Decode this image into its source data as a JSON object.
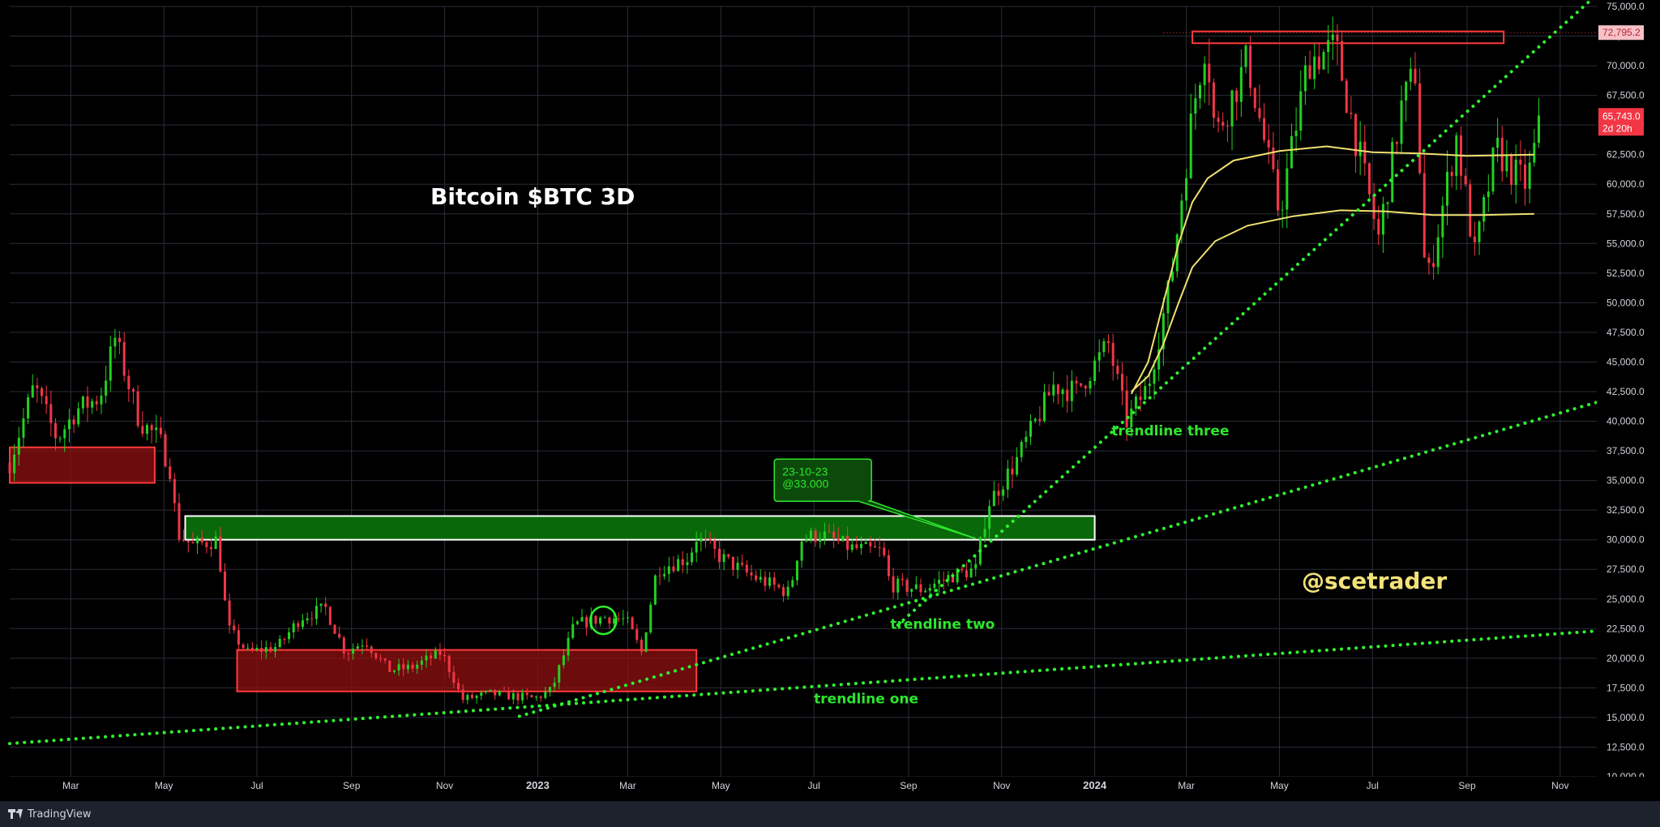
{
  "chart_data": {
    "type": "candlestick",
    "title": "Bitcoin $BTC 3D",
    "watermark": "@scetrader",
    "x_ticks": [
      "Mar",
      "May",
      "Jul",
      "Sep",
      "Nov",
      "2023",
      "Mar",
      "May",
      "Jul",
      "Sep",
      "Nov",
      "2024",
      "Mar",
      "May",
      "Jul",
      "Sep",
      "Nov"
    ],
    "y_ticks": [
      "75,000.0",
      "72,500.0",
      "70,000.0",
      "67,500.0",
      "65,000.0",
      "62,500.0",
      "60,000.0",
      "57,500.0",
      "55,000.0",
      "52,500.0",
      "50,000.0",
      "47,500.0",
      "45,000.0",
      "42,500.0",
      "40,000.0",
      "37,500.0",
      "35,000.0",
      "32,500.0",
      "30,000.0",
      "27,500.0",
      "25,000.0",
      "22,500.0",
      "20,000.0",
      "17,500.0",
      "15,000.0",
      "12,500.0",
      "10,000.0"
    ],
    "ylim": [
      10000,
      75000
    ],
    "xlim": [
      "2022-01-20",
      "2024-11-25"
    ],
    "grid": true,
    "price_labels": {
      "resistance_value": "72,795.2",
      "last_value": "65,743.0",
      "countdown": "2d 20h"
    },
    "colors": {
      "up": "#22d122",
      "down": "#f23645",
      "trendline": "#2ff02f",
      "zone_green": "#0a6e0a",
      "zone_red": "#8b1010",
      "ma": "#f0e070",
      "annotation": "#2ee52e",
      "watermark": "#f3e27a",
      "title": "#ffffff",
      "resistance": "#f23645",
      "last_price": "#f23645"
    },
    "annotations": [
      {
        "text": "trendline one",
        "x": "2023-07-01",
        "y": 16200
      },
      {
        "text": "trendline two",
        "x": "2023-08-20",
        "y": 22500
      },
      {
        "text": "trendline three",
        "x": "2024-01-12",
        "y": 38800
      }
    ],
    "callout": {
      "lines": [
        "23-10-23",
        "@33.000"
      ],
      "target": {
        "x": "2023-10-15",
        "y": 30100
      }
    },
    "zones": [
      {
        "kind": "green",
        "x0": "2022-05-15",
        "x1": "2024-01-01",
        "y0": 30000,
        "y1": 32000,
        "outline": "#ffffff"
      },
      {
        "kind": "red",
        "x0": "2022-06-18",
        "x1": "2023-04-15",
        "y0": 17200,
        "y1": 20700,
        "outline": "#ff3b3b"
      },
      {
        "kind": "red",
        "x0": "2022-01-20",
        "x1": "2022-04-25",
        "y0": 34800,
        "y1": 37800,
        "outline": "#ff3b3b"
      },
      {
        "kind": "red-outline",
        "x0": "2024-03-05",
        "x1": "2024-09-25",
        "y0": 71900,
        "y1": 72900,
        "outline": "#ff3b3b"
      }
    ],
    "circle_marker": {
      "x": "2023-02-13",
      "y": 23200
    },
    "trendlines": [
      {
        "name": "trendline one",
        "p1": {
          "x": "2022-01-20",
          "y": 12800
        },
        "p2": {
          "x": "2024-11-25",
          "y": 22300
        }
      },
      {
        "name": "trendline two",
        "p1": {
          "x": "2022-12-20",
          "y": 15100
        },
        "p2": {
          "x": "2024-11-25",
          "y": 41600
        }
      },
      {
        "name": "trendline three",
        "p1": {
          "x": "2023-08-25",
          "y": 22800
        },
        "p2": {
          "x": "2024-11-25",
          "y": 76000
        }
      }
    ],
    "moving_averages": [
      {
        "points": [
          [
            "2024-01-25",
            42300
          ],
          [
            "2024-02-05",
            45000
          ],
          [
            "2024-02-15",
            50000
          ],
          [
            "2024-02-25",
            55000
          ],
          [
            "2024-03-05",
            58500
          ],
          [
            "2024-03-15",
            60500
          ],
          [
            "2024-04-01",
            62000
          ],
          [
            "2024-05-01",
            62800
          ],
          [
            "2024-06-01",
            63200
          ],
          [
            "2024-07-01",
            62700
          ],
          [
            "2024-08-01",
            62600
          ],
          [
            "2024-09-01",
            62400
          ],
          [
            "2024-10-15",
            62500
          ]
        ]
      },
      {
        "points": [
          [
            "2024-01-25",
            42500
          ],
          [
            "2024-02-05",
            43800
          ],
          [
            "2024-02-15",
            46500
          ],
          [
            "2024-02-25",
            50000
          ],
          [
            "2024-03-05",
            53000
          ],
          [
            "2024-03-20",
            55200
          ],
          [
            "2024-04-10",
            56500
          ],
          [
            "2024-05-10",
            57300
          ],
          [
            "2024-06-10",
            57800
          ],
          [
            "2024-07-10",
            57700
          ],
          [
            "2024-08-10",
            57400
          ],
          [
            "2024-09-10",
            57400
          ],
          [
            "2024-10-15",
            57500
          ]
        ]
      }
    ],
    "series_path": [
      [
        "2022-01-20",
        36500
      ],
      [
        "2022-02-05",
        43000
      ],
      [
        "2022-02-20",
        38500
      ],
      [
        "2022-03-05",
        41000
      ],
      [
        "2022-03-20",
        42000
      ],
      [
        "2022-03-30",
        47000
      ],
      [
        "2022-04-15",
        40000
      ],
      [
        "2022-04-28",
        38500
      ],
      [
        "2022-05-05",
        36000
      ],
      [
        "2022-05-10",
        30500
      ],
      [
        "2022-05-20",
        29500
      ],
      [
        "2022-06-05",
        30000
      ],
      [
        "2022-06-12",
        22500
      ],
      [
        "2022-06-25",
        20500
      ],
      [
        "2022-07-15",
        21000
      ],
      [
        "2022-07-30",
        23500
      ],
      [
        "2022-08-15",
        24200
      ],
      [
        "2022-08-28",
        20500
      ],
      [
        "2022-09-10",
        21500
      ],
      [
        "2022-09-25",
        19000
      ],
      [
        "2022-10-10",
        19200
      ],
      [
        "2022-10-30",
        20500
      ],
      [
        "2022-11-08",
        18000
      ],
      [
        "2022-11-12",
        16500
      ],
      [
        "2022-12-01",
        17000
      ],
      [
        "2022-12-30",
        16600
      ],
      [
        "2023-01-10",
        17300
      ],
      [
        "2023-01-25",
        22800
      ],
      [
        "2023-02-15",
        23500
      ],
      [
        "2023-02-28",
        23200
      ],
      [
        "2023-03-10",
        20500
      ],
      [
        "2023-03-20",
        27500
      ],
      [
        "2023-04-10",
        28500
      ],
      [
        "2023-04-15",
        30200
      ],
      [
        "2023-05-01",
        28500
      ],
      [
        "2023-05-20",
        27000
      ],
      [
        "2023-06-15",
        25500
      ],
      [
        "2023-06-22",
        30000
      ],
      [
        "2023-07-05",
        30500
      ],
      [
        "2023-07-25",
        29300
      ],
      [
        "2023-08-15",
        29000
      ],
      [
        "2023-08-20",
        26200
      ],
      [
        "2023-09-10",
        25800
      ],
      [
        "2023-09-30",
        27000
      ],
      [
        "2023-10-15",
        27500
      ],
      [
        "2023-10-23",
        33000
      ],
      [
        "2023-11-10",
        36500
      ],
      [
        "2023-12-05",
        43000
      ],
      [
        "2023-12-20",
        42500
      ],
      [
        "2024-01-10",
        46500
      ],
      [
        "2024-01-22",
        40000
      ],
      [
        "2024-02-05",
        43000
      ],
      [
        "2024-02-20",
        52000
      ],
      [
        "2024-03-05",
        66000
      ],
      [
        "2024-03-14",
        72500
      ],
      [
        "2024-03-20",
        64000
      ],
      [
        "2024-04-10",
        70500
      ],
      [
        "2024-05-01",
        57500
      ],
      [
        "2024-05-20",
        70500
      ],
      [
        "2024-06-07",
        71500
      ],
      [
        "2024-06-25",
        61000
      ],
      [
        "2024-07-05",
        55500
      ],
      [
        "2024-07-20",
        66500
      ],
      [
        "2024-07-29",
        69500
      ],
      [
        "2024-08-05",
        51000
      ],
      [
        "2024-08-25",
        64000
      ],
      [
        "2024-09-06",
        54000
      ],
      [
        "2024-09-20",
        63000
      ],
      [
        "2024-10-01",
        61000
      ],
      [
        "2024-10-10",
        60000
      ],
      [
        "2024-10-20",
        65743
      ]
    ]
  }
}
